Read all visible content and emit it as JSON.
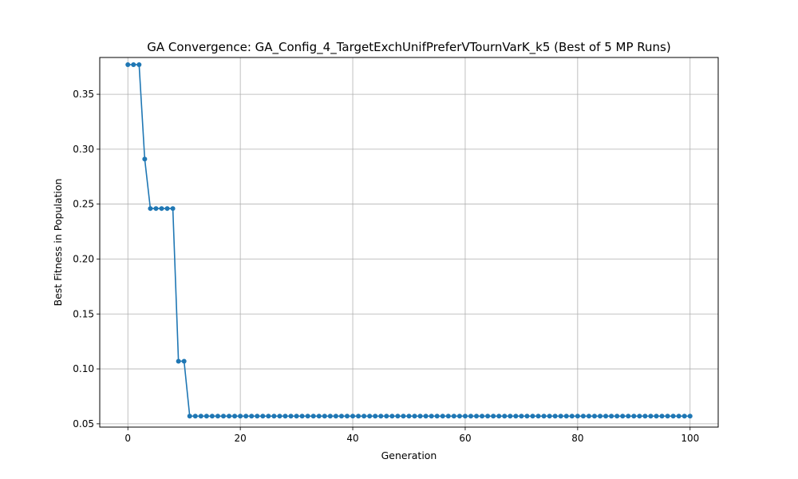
{
  "chart_data": {
    "type": "line",
    "title": "GA Convergence: GA_Config_4_TargetExchUnifPreferVTournVarK_k5 (Best of 5 MP Runs)",
    "xlabel": "Generation",
    "ylabel": "Best Fitness in Population",
    "xlim": [
      -5,
      105
    ],
    "ylim": [
      0.047,
      0.3835
    ],
    "xticks": [
      0,
      20,
      40,
      60,
      80,
      100
    ],
    "yticks": [
      0.05,
      0.1,
      0.15,
      0.2,
      0.25,
      0.3,
      0.35
    ],
    "xtick_labels": [
      "0",
      "20",
      "40",
      "60",
      "80",
      "100"
    ],
    "ytick_labels": [
      "0.05",
      "0.10",
      "0.15",
      "0.20",
      "0.25",
      "0.30",
      "0.35"
    ],
    "grid": true,
    "color": "#1f77b4",
    "series": [
      {
        "x": [
          0,
          1,
          2,
          3,
          4,
          5,
          6,
          7,
          8,
          9,
          10,
          11,
          12,
          13,
          14,
          15,
          16,
          17,
          18,
          19,
          20,
          21,
          22,
          23,
          24,
          25,
          26,
          27,
          28,
          29,
          30,
          31,
          32,
          33,
          34,
          35,
          36,
          37,
          38,
          39,
          40,
          41,
          42,
          43,
          44,
          45,
          46,
          47,
          48,
          49,
          50,
          51,
          52,
          53,
          54,
          55,
          56,
          57,
          58,
          59,
          60,
          61,
          62,
          63,
          64,
          65,
          66,
          67,
          68,
          69,
          70,
          71,
          72,
          73,
          74,
          75,
          76,
          77,
          78,
          79,
          80,
          81,
          82,
          83,
          84,
          85,
          86,
          87,
          88,
          89,
          90,
          91,
          92,
          93,
          94,
          95,
          96,
          97,
          98,
          99,
          100
        ],
        "y": [
          0.377,
          0.377,
          0.377,
          0.291,
          0.246,
          0.246,
          0.246,
          0.246,
          0.246,
          0.107,
          0.107,
          0.057,
          0.057,
          0.057,
          0.057,
          0.057,
          0.057,
          0.057,
          0.057,
          0.057,
          0.057,
          0.057,
          0.057,
          0.057,
          0.057,
          0.057,
          0.057,
          0.057,
          0.057,
          0.057,
          0.057,
          0.057,
          0.057,
          0.057,
          0.057,
          0.057,
          0.057,
          0.057,
          0.057,
          0.057,
          0.057,
          0.057,
          0.057,
          0.057,
          0.057,
          0.057,
          0.057,
          0.057,
          0.057,
          0.057,
          0.057,
          0.057,
          0.057,
          0.057,
          0.057,
          0.057,
          0.057,
          0.057,
          0.057,
          0.057,
          0.057,
          0.057,
          0.057,
          0.057,
          0.057,
          0.057,
          0.057,
          0.057,
          0.057,
          0.057,
          0.057,
          0.057,
          0.057,
          0.057,
          0.057,
          0.057,
          0.057,
          0.057,
          0.057,
          0.057,
          0.057,
          0.057,
          0.057,
          0.057,
          0.057,
          0.057,
          0.057,
          0.057,
          0.057,
          0.057,
          0.057,
          0.057,
          0.057,
          0.057,
          0.057,
          0.057,
          0.057,
          0.057,
          0.057,
          0.057,
          0.057
        ]
      }
    ]
  }
}
